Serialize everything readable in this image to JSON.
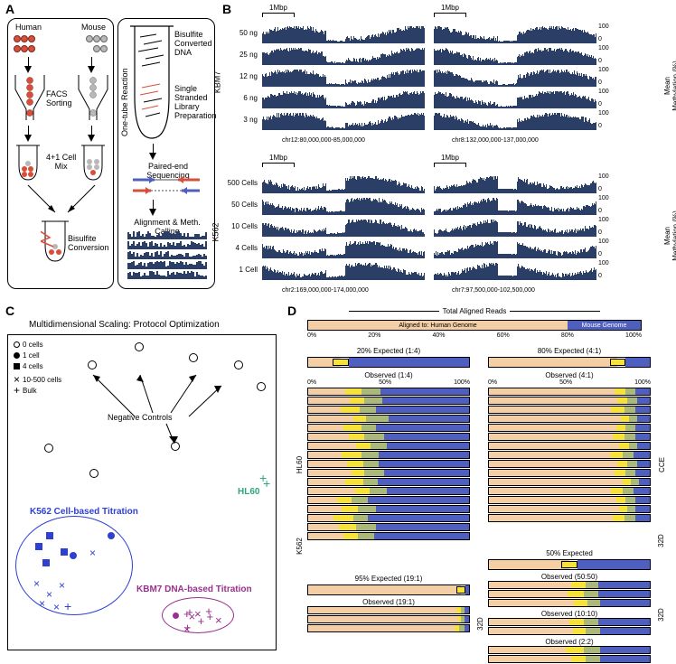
{
  "panelA": {
    "label": "A",
    "human": "Human",
    "mouse": "Mouse",
    "facs": "FACS\nSorting",
    "mix": "4+1 Cell\nMix",
    "bisulfite": "Bisulfite\nConversion",
    "onetube": "One-tube Reaction",
    "bcdna": "Bisulfite\nConverted\nDNA",
    "sslib": "Single\nStranded\nLibrary\nPreparation",
    "paired": "Paired-end Sequencing",
    "align": "Alignment & Meth. Calling"
  },
  "panelB": {
    "label": "B",
    "scalebar": "1Mbp",
    "meth_axis_label": "Mean\nMethylation (%)",
    "kbm7": {
      "side_label": "KBM7",
      "rows": [
        "50 ng",
        "25 ng",
        "12 ng",
        "6 ng",
        "3 ng"
      ],
      "x1": "chr12:80,000,000-85,000,000",
      "x2": "chr8:132,000,000-137,000,000"
    },
    "k562": {
      "side_label": "K562",
      "rows": [
        "500 Cells",
        "50 Cells",
        "10 Cells",
        "4 Cells",
        "1 Cell"
      ],
      "x1": "chr2:169,000,000-174,000,000",
      "x2": "chr7:97,500,000-102,500,000"
    },
    "ytick_hi": "100",
    "ytick_lo": "0"
  },
  "panelC": {
    "label": "C",
    "title": "Multidimensional Scaling: Protocol Optimization",
    "legend": {
      "l0": "0 cells",
      "l1": "1 cell",
      "l4": "4 cells",
      "l10": "10-500 cells",
      "lbulk": "Bulk"
    },
    "neg": "Negative Controls",
    "k562": "K562 Cell-based Titration",
    "kbm7": "KBM7 DNA-based Titration",
    "hl60": "HL60",
    "colors": {
      "k562": "#2e3fd6",
      "kbm7": "#9a2f8f",
      "hl60": "#2fa57a"
    }
  },
  "panelD": {
    "label": "D",
    "total": "Total Aligned Reads",
    "human": "Aligned to: Human Genome",
    "mouse": "Mouse Genome",
    "pct": [
      "0%",
      "20%",
      "40%",
      "60%",
      "80%",
      "100%"
    ],
    "pctL": [
      "0%",
      "50%",
      "100%"
    ],
    "pctR": [
      "0%",
      "50%",
      "100%"
    ],
    "exp20": "20% Expected (1:4)",
    "obs14": "Observed (1:4)",
    "exp80": "80% Expected (4:1)",
    "obs41": "Observed (4:1)",
    "exp50": "50% Expected",
    "obs5050": "Observed (50:50)",
    "obs1010": "Observed (10:10)",
    "obs22": "Observed (2:2)",
    "exp95": "95% Expected (19:1)",
    "obs191": "Observed (19:1)",
    "sides": {
      "hl60": "HL60",
      "k562": "K562",
      "cce": "CCE",
      "d32": "32D"
    },
    "colors": {
      "human": "#f4cfa6",
      "mouse": "#4f5fbf",
      "yellow": "#f7e13b",
      "olive": "#aab87a"
    },
    "stack14": {
      "hl60": [
        [
          23,
          10,
          12,
          55
        ],
        [
          26,
          9,
          11,
          54
        ],
        [
          20,
          12,
          10,
          58
        ],
        [
          28,
          8,
          14,
          50
        ],
        [
          22,
          11,
          9,
          58
        ],
        [
          25,
          10,
          12,
          53
        ],
        [
          30,
          9,
          10,
          51
        ],
        [
          21,
          12,
          11,
          56
        ],
        [
          24,
          10,
          10,
          56
        ],
        [
          27,
          8,
          12,
          53
        ],
        [
          23,
          11,
          9,
          57
        ],
        [
          29,
          9,
          11,
          51
        ]
      ],
      "k562": [
        [
          18,
          9,
          10,
          63
        ],
        [
          21,
          10,
          11,
          58
        ],
        [
          16,
          12,
          9,
          63
        ],
        [
          19,
          11,
          12,
          58
        ],
        [
          22,
          9,
          10,
          59
        ]
      ]
    },
    "stack41": {
      "cce": [
        [
          78,
          7,
          6,
          9
        ],
        [
          80,
          6,
          6,
          8
        ],
        [
          76,
          8,
          7,
          9
        ],
        [
          82,
          5,
          5,
          8
        ],
        [
          79,
          6,
          6,
          9
        ],
        [
          77,
          7,
          7,
          9
        ],
        [
          81,
          6,
          5,
          8
        ],
        [
          75,
          8,
          7,
          10
        ],
        [
          80,
          6,
          6,
          8
        ],
        [
          78,
          7,
          6,
          9
        ],
        [
          83,
          5,
          5,
          7
        ],
        [
          76,
          7,
          7,
          10
        ]
      ],
      "d32": [
        [
          79,
          6,
          6,
          9
        ],
        [
          81,
          5,
          5,
          9
        ],
        [
          77,
          7,
          7,
          9
        ]
      ]
    },
    "stack5050": {
      "d32": [
        [
          51,
          9,
          8,
          32
        ],
        [
          49,
          10,
          9,
          32
        ],
        [
          53,
          8,
          8,
          31
        ]
      ]
    },
    "stack1010": {
      "d32": [
        [
          50,
          9,
          9,
          32
        ],
        [
          52,
          8,
          9,
          31
        ]
      ]
    },
    "stack22": {
      "d32": [
        [
          48,
          11,
          10,
          31
        ],
        [
          51,
          9,
          9,
          31
        ]
      ]
    },
    "stack191": {
      "d32": [
        [
          92,
          3,
          2,
          3
        ],
        [
          93,
          2,
          2,
          3
        ],
        [
          91,
          3,
          3,
          3
        ]
      ]
    }
  }
}
